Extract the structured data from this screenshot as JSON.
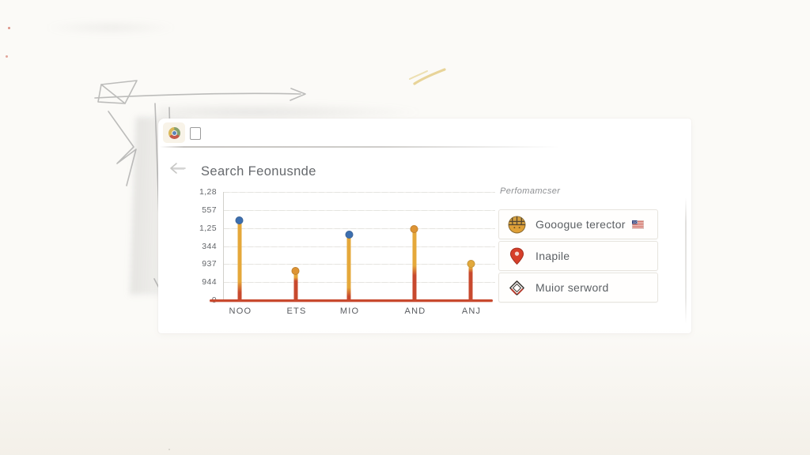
{
  "browser": {
    "title": "Search Feonusnde"
  },
  "chart_data": {
    "type": "bar",
    "subtype": "lollipop-sketch",
    "title": "Search Feonusnde",
    "categories": [
      "NOO",
      "ETS",
      "MIO",
      "AND",
      "ANJ"
    ],
    "values_pct": [
      71.5,
      24.8,
      58.4,
      63.5,
      31.4
    ],
    "x_offsets_pct": [
      5.9,
      27.0,
      46.9,
      71.5,
      92.6
    ],
    "red_fraction_from_bottom": [
      0.24,
      0.85,
      0.2,
      0.5,
      0.95
    ],
    "dot_colors": [
      "#3c6fb0",
      "#de9433",
      "#3c6fb0",
      "#de9433",
      "#e2a93c"
    ],
    "y_tick_labels": [
      "1,28",
      "557",
      "1,25",
      "344",
      "937",
      "944",
      "0"
    ],
    "xlabel": "",
    "ylabel": "",
    "grid": true,
    "legend": false,
    "colors": {
      "stem_yellow": "#e5a83a",
      "stem_red": "#c8492e",
      "baseline_red": "#c8492e",
      "gridline": "#e5e4e0",
      "axis": "#d2d0cb",
      "dot_blue": "#3c6fb0",
      "dot_orange": "#de9433",
      "dot_yellow": "#e2a93c"
    }
  },
  "panel": {
    "header": "Perfomamcser",
    "items": [
      {
        "label": "Gooogue terector",
        "icon": "globe-icon",
        "trailing_icon": "us-flag-icon"
      },
      {
        "label": "Inapile",
        "icon": "map-pin-icon"
      },
      {
        "label": "Muior serword",
        "icon": "diamond-icon"
      }
    ]
  }
}
